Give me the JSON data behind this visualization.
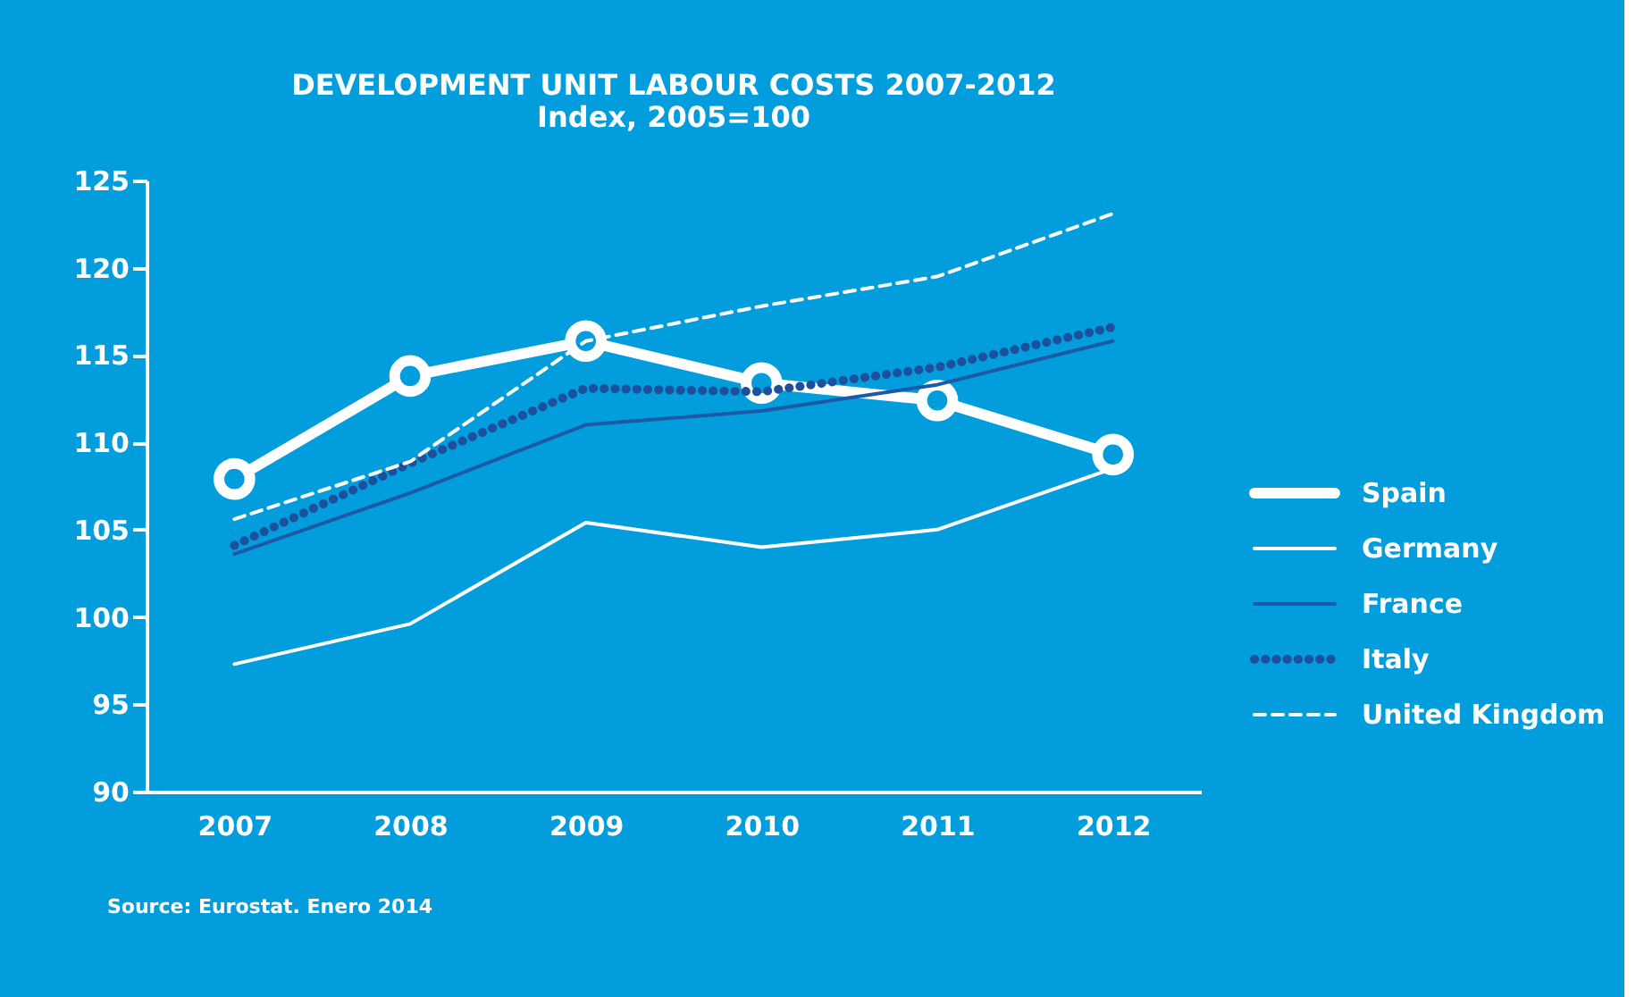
{
  "chart_data": {
    "type": "line",
    "title": "DEVELOPMENT UNIT LABOUR COSTS 2007-2012",
    "subtitle": "Index, 2005=100",
    "categories": [
      "2007",
      "2008",
      "2009",
      "2010",
      "2011",
      "2012"
    ],
    "series": [
      {
        "name": "Spain",
        "color": "#ffffff",
        "marker": "circle",
        "line_style": "solid",
        "values": [
          107.9,
          113.8,
          115.8,
          113.4,
          112.4,
          109.3
        ]
      },
      {
        "name": "Germany",
        "color": "#ffffff",
        "line_style": "solid",
        "values": [
          97.3,
          99.6,
          105.4,
          104.0,
          105.0,
          108.5
        ]
      },
      {
        "name": "France",
        "color": "#1c5aa8",
        "line_style": "solid",
        "values": [
          103.6,
          107.1,
          111.0,
          111.8,
          113.3,
          115.8
        ]
      },
      {
        "name": "Italy",
        "color": "#1c4f9c",
        "line_style": "dotted",
        "values": [
          104.1,
          108.8,
          113.1,
          112.9,
          114.3,
          116.6
        ]
      },
      {
        "name": "United Kingdom",
        "color": "#ffffff",
        "line_style": "dashed",
        "values": [
          105.6,
          108.9,
          115.8,
          117.8,
          119.5,
          123.1
        ]
      }
    ],
    "ylim": [
      90,
      125
    ],
    "yticks": [
      90,
      95,
      100,
      105,
      110,
      115,
      120,
      125
    ],
    "grid": false,
    "legend": "right",
    "annotations": [
      "Source: Eurostat. Enero 2014"
    ]
  }
}
